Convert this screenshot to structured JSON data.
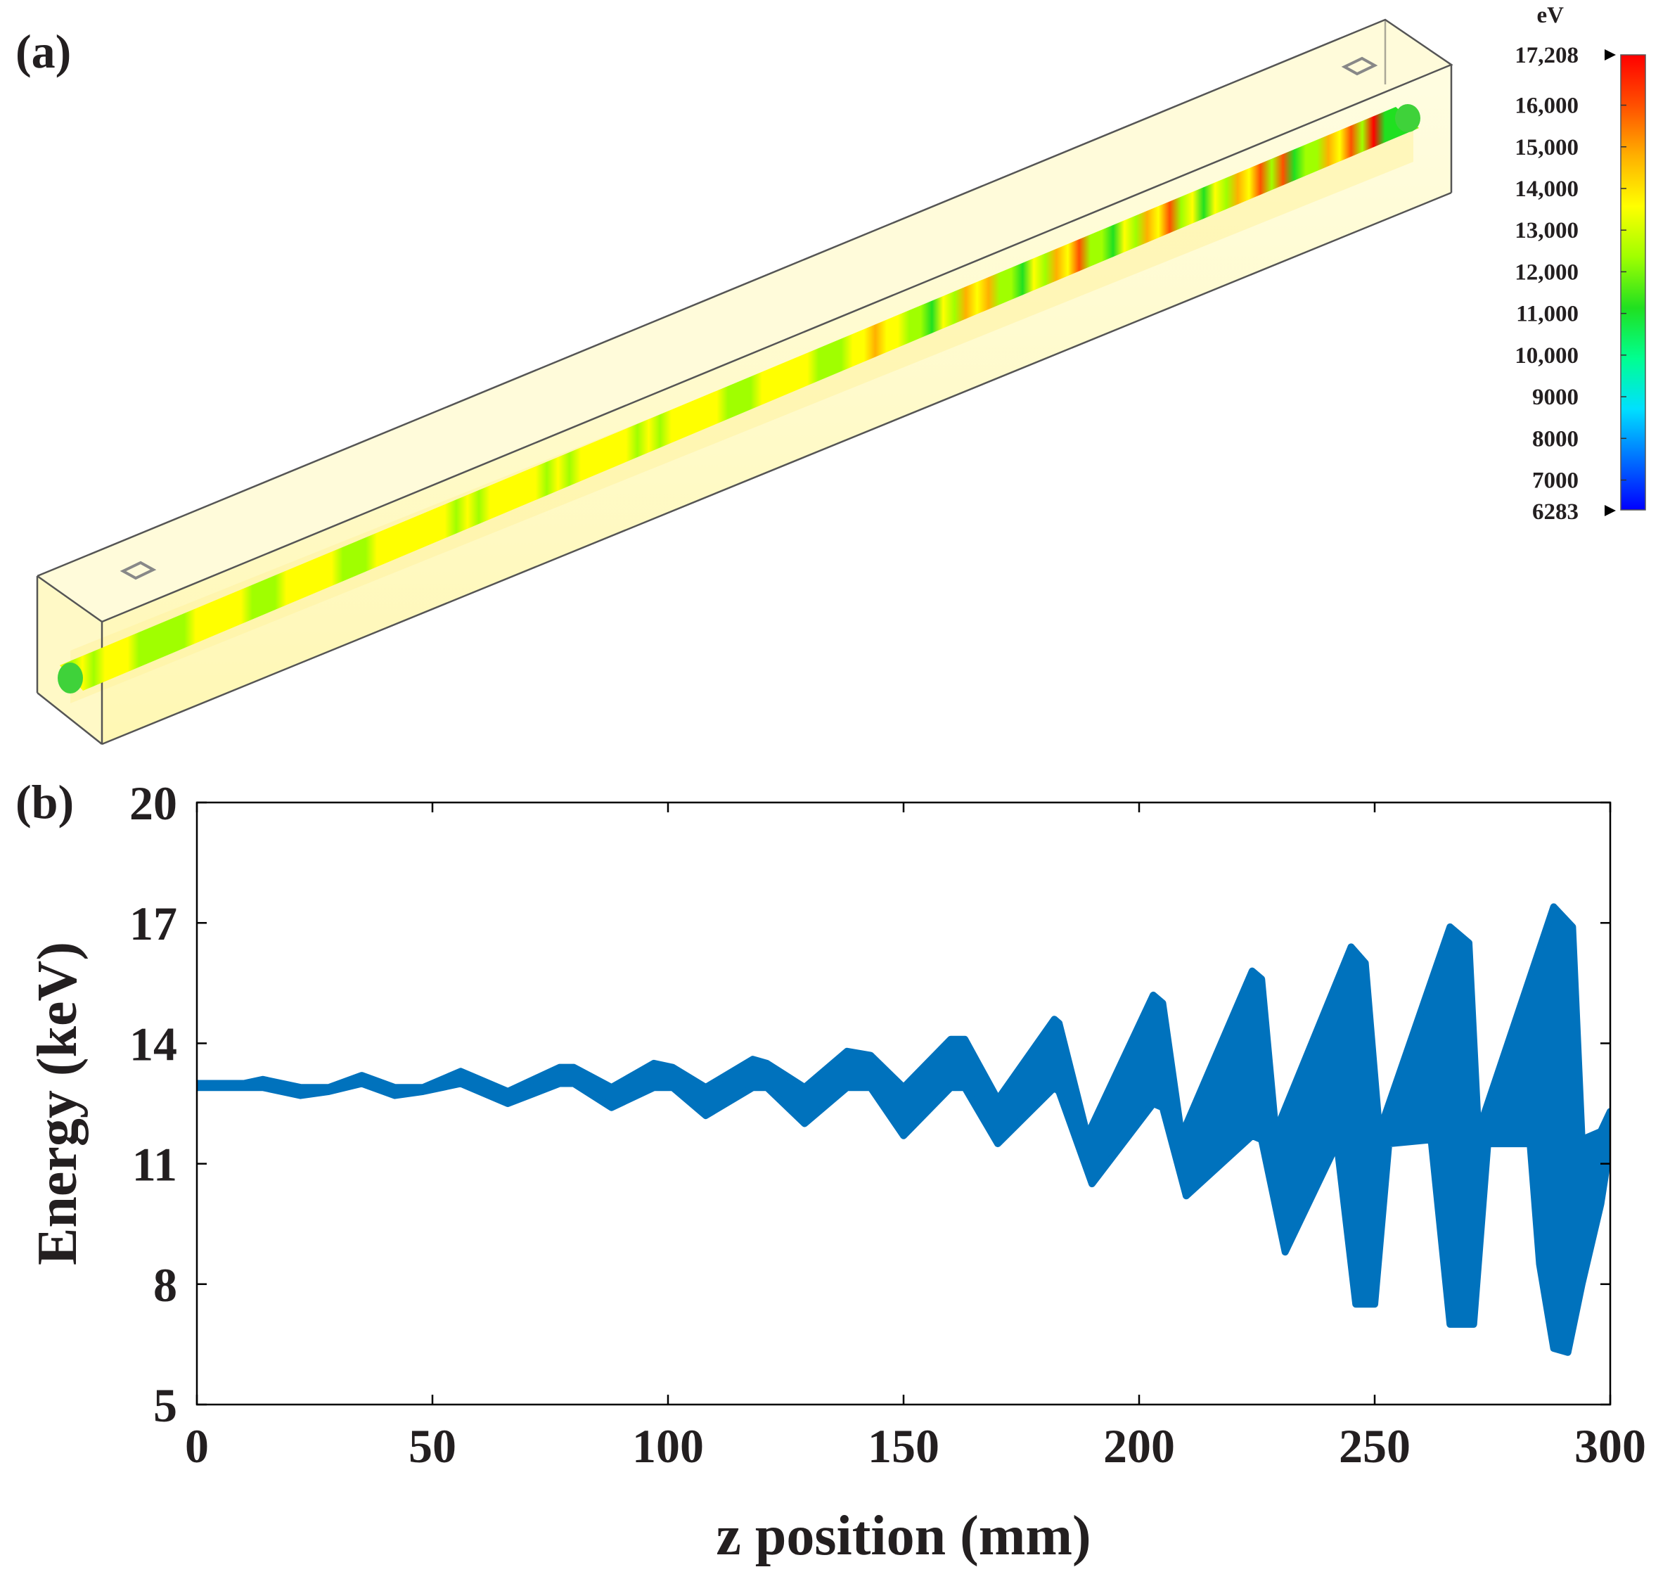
{
  "panel_a": {
    "label": "(a)",
    "colorbar": {
      "unit": "eV",
      "max_label": "17,208",
      "min_label": "6283",
      "min": 6283,
      "max": 17208,
      "ticks": [
        {
          "value": 16000,
          "label": "16,000"
        },
        {
          "value": 15000,
          "label": "15,000"
        },
        {
          "value": 14000,
          "label": "14,000"
        },
        {
          "value": 13000,
          "label": "13,000"
        },
        {
          "value": 12000,
          "label": "12,000"
        },
        {
          "value": 11000,
          "label": "11,000"
        },
        {
          "value": 10000,
          "label": "10,000"
        },
        {
          "value": 9000,
          "label": "9000"
        },
        {
          "value": 8000,
          "label": "8000"
        },
        {
          "value": 7000,
          "label": "7000"
        }
      ],
      "colormap": [
        "#0000ff",
        "#0070ff",
        "#00e0ff",
        "#00ff90",
        "#20e020",
        "#a0ff00",
        "#ffff00",
        "#ffb000",
        "#ff5000",
        "#ff0000"
      ]
    }
  },
  "panel_b": {
    "label": "(b)"
  },
  "chart_data": {
    "type": "line",
    "xlabel": "z position (mm)",
    "ylabel": "Energy (keV)",
    "xlim": [
      0,
      300
    ],
    "ylim": [
      5,
      20
    ],
    "xticks": [
      0,
      50,
      100,
      150,
      200,
      250,
      300
    ],
    "yticks": [
      5,
      8,
      11,
      14,
      17,
      20
    ],
    "grid": false,
    "line_color": "#0072bd",
    "series": [
      {
        "upper": [
          [
            0,
            13.0
          ],
          [
            5,
            13.0
          ],
          [
            10,
            13.0
          ],
          [
            14,
            13.1
          ],
          [
            22,
            12.9
          ],
          [
            28,
            12.9
          ],
          [
            35,
            13.2
          ],
          [
            42,
            12.9
          ],
          [
            48,
            12.9
          ],
          [
            56,
            13.3
          ],
          [
            66,
            12.8
          ],
          [
            77,
            13.4
          ],
          [
            80,
            13.4
          ],
          [
            88,
            12.9
          ],
          [
            97,
            13.5
          ],
          [
            101,
            13.4
          ],
          [
            108,
            12.9
          ],
          [
            118,
            13.6
          ],
          [
            121,
            13.5
          ],
          [
            129,
            12.9
          ],
          [
            138,
            13.8
          ],
          [
            143,
            13.7
          ],
          [
            150,
            12.9
          ],
          [
            160,
            14.1
          ],
          [
            163,
            14.1
          ],
          [
            170,
            12.6
          ],
          [
            182,
            14.6
          ],
          [
            183,
            14.5
          ],
          [
            189,
            11.7
          ],
          [
            203,
            15.2
          ],
          [
            205,
            15.0
          ],
          [
            209,
            11.7
          ],
          [
            224,
            15.8
          ],
          [
            226,
            15.6
          ],
          [
            229,
            11.8
          ],
          [
            245,
            16.4
          ],
          [
            248,
            16.0
          ],
          [
            251,
            11.8
          ],
          [
            266,
            16.9
          ],
          [
            270,
            16.5
          ],
          [
            272,
            11.8
          ],
          [
            288,
            17.4
          ],
          [
            292,
            16.9
          ],
          [
            294,
            11.6
          ],
          [
            298,
            11.8
          ],
          [
            300,
            12.3
          ]
        ],
        "lower": [
          [
            0,
            12.9
          ],
          [
            5,
            12.9
          ],
          [
            10,
            12.9
          ],
          [
            14,
            12.9
          ],
          [
            22,
            12.7
          ],
          [
            28,
            12.8
          ],
          [
            35,
            13.0
          ],
          [
            42,
            12.7
          ],
          [
            48,
            12.8
          ],
          [
            56,
            13.0
          ],
          [
            66,
            12.5
          ],
          [
            77,
            13.0
          ],
          [
            80,
            13.0
          ],
          [
            88,
            12.4
          ],
          [
            97,
            12.9
          ],
          [
            101,
            12.9
          ],
          [
            108,
            12.2
          ],
          [
            118,
            12.9
          ],
          [
            121,
            12.9
          ],
          [
            129,
            12.0
          ],
          [
            138,
            12.9
          ],
          [
            143,
            12.9
          ],
          [
            150,
            11.7
          ],
          [
            160,
            12.9
          ],
          [
            163,
            12.9
          ],
          [
            170,
            11.5
          ],
          [
            182,
            12.9
          ],
          [
            183,
            12.8
          ],
          [
            190,
            10.5
          ],
          [
            203,
            12.5
          ],
          [
            205,
            12.4
          ],
          [
            210,
            10.2
          ],
          [
            224,
            11.7
          ],
          [
            226,
            11.6
          ],
          [
            231,
            8.8
          ],
          [
            242,
            11.5
          ],
          [
            246,
            7.5
          ],
          [
            250,
            7.5
          ],
          [
            253,
            11.5
          ],
          [
            262,
            11.6
          ],
          [
            266,
            7.0
          ],
          [
            271,
            7.0
          ],
          [
            274,
            11.5
          ],
          [
            283,
            11.5
          ],
          [
            285,
            8.5
          ],
          [
            288,
            6.4
          ],
          [
            291,
            6.3
          ],
          [
            294,
            8.0
          ],
          [
            298,
            10.0
          ],
          [
            300,
            11.5
          ]
        ]
      }
    ]
  }
}
